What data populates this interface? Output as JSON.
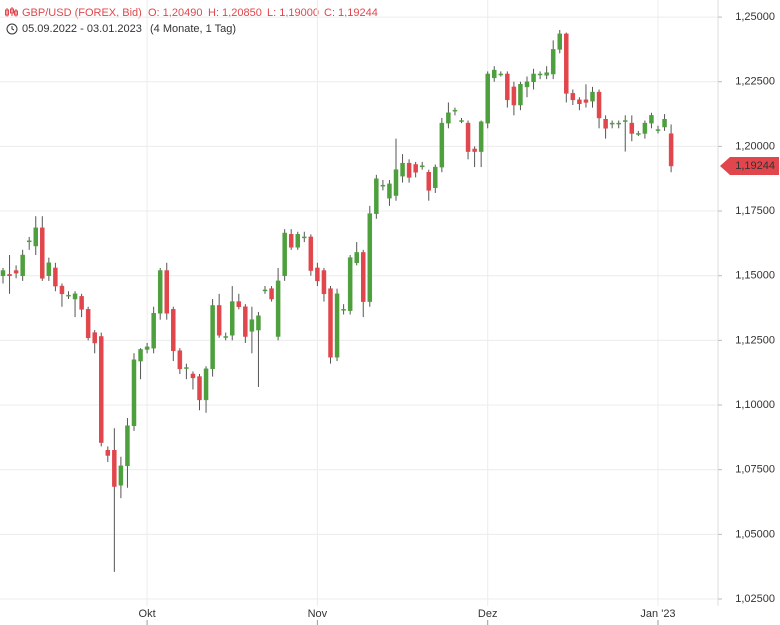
{
  "chart_data": {
    "type": "candlestick",
    "title": "GBP/USD (FOREX, Bid)",
    "summary": [
      {
        "value": 1.2049,
        "label": "O: 1,20490"
      },
      {
        "value": 1.2085,
        "label": "H: 1,20850"
      },
      {
        "value": 1.19,
        "label": "L: 1,19000"
      },
      {
        "value": 1.19244,
        "label": "C: 1,19244"
      }
    ],
    "date_range": "05.09.2022 - 03.01.2023",
    "duration": "(4 Monate, 1 Tag)",
    "last_price": {
      "value": 1.19244,
      "label": "1,19244"
    },
    "up_color": "#4e9f3d",
    "down_color": "#e0464c",
    "grid": true,
    "ylim": [
      1.0223,
      1.2566
    ],
    "yticks": [
      {
        "value": 1.025,
        "label": "1,02500"
      },
      {
        "value": 1.05,
        "label": "1,05000"
      },
      {
        "value": 1.075,
        "label": "1,07500"
      },
      {
        "value": 1.1,
        "label": "1,10000"
      },
      {
        "value": 1.125,
        "label": "1,12500"
      },
      {
        "value": 1.15,
        "label": "1,15000"
      },
      {
        "value": 1.175,
        "label": "1,17500"
      },
      {
        "value": 1.2,
        "label": "1,20000"
      },
      {
        "value": 1.225,
        "label": "1,22500"
      },
      {
        "value": 1.25,
        "label": "1,25000"
      }
    ],
    "categories": [
      null,
      null,
      null,
      null,
      null,
      null,
      null,
      null,
      null,
      null,
      null,
      null,
      null,
      null,
      null,
      null,
      null,
      null,
      null,
      null,
      null,
      null,
      "Okt",
      null,
      null,
      null,
      null,
      null,
      null,
      null,
      null,
      null,
      null,
      null,
      null,
      null,
      null,
      null,
      null,
      null,
      null,
      null,
      null,
      null,
      null,
      null,
      null,
      null,
      "Nov",
      null,
      null,
      null,
      null,
      null,
      null,
      null,
      null,
      null,
      null,
      null,
      null,
      null,
      null,
      null,
      null,
      null,
      null,
      null,
      null,
      null,
      null,
      null,
      null,
      null,
      "Dez",
      null,
      null,
      null,
      null,
      null,
      null,
      null,
      null,
      null,
      null,
      null,
      null,
      null,
      null,
      null,
      null,
      null,
      null,
      null,
      null,
      null,
      null,
      null,
      null,
      null,
      "Jan '23",
      null,
      null
    ],
    "open": [
      1.15,
      1.1505,
      1.152,
      1.15,
      1.1635,
      1.1615,
      1.1685,
      1.15,
      1.153,
      1.146,
      1.1425,
      1.141,
      1.142,
      1.137,
      1.128,
      1.1265,
      1.0825,
      1.0825,
      1.069,
      1.0765,
      1.092,
      1.117,
      1.1215,
      1.122,
      1.1355,
      1.152,
      1.137,
      1.121,
      1.1145,
      1.112,
      1.111,
      1.102,
      1.114,
      1.1385,
      1.1265,
      1.127,
      1.14,
      1.138,
      1.1285,
      1.129,
      1.1445,
      1.145,
      1.1265,
      1.15,
      1.166,
      1.161,
      1.165,
      1.165,
      1.153,
      1.152,
      1.145,
      1.1185,
      1.137,
      1.1365,
      1.155,
      1.159,
      1.14,
      1.174,
      1.185,
      1.18,
      1.181,
      1.1885,
      1.1935,
      1.193,
      1.1925,
      1.19,
      1.184,
      1.192,
      1.209,
      1.214,
      1.21,
      1.209,
      1.199,
      1.198,
      1.209,
      1.2265,
      1.228,
      1.228,
      1.223,
      1.216,
      1.223,
      1.225,
      1.228,
      1.2275,
      1.228,
      1.2375,
      1.2435,
      1.2205,
      1.218,
      1.218,
      1.2175,
      1.221,
      1.2105,
      1.209,
      1.209,
      1.21,
      1.209,
      1.205,
      1.205,
      1.209,
      1.2065,
      1.2075,
      1.2049
    ],
    "high": [
      1.153,
      1.158,
      1.154,
      1.16,
      1.165,
      1.173,
      1.173,
      1.157,
      1.155,
      1.147,
      1.144,
      1.144,
      1.143,
      1.138,
      1.129,
      1.128,
      1.084,
      1.091,
      1.08,
      1.095,
      1.12,
      1.122,
      1.124,
      1.138,
      1.153,
      1.155,
      1.138,
      1.122,
      1.116,
      1.113,
      1.112,
      1.115,
      1.141,
      1.143,
      1.128,
      1.146,
      1.143,
      1.139,
      1.138,
      1.136,
      1.146,
      1.146,
      1.153,
      1.168,
      1.168,
      1.167,
      1.167,
      1.166,
      1.155,
      1.153,
      1.146,
      1.145,
      1.139,
      1.158,
      1.163,
      1.16,
      1.177,
      1.189,
      1.187,
      1.187,
      1.203,
      1.197,
      1.195,
      1.194,
      1.194,
      1.191,
      1.193,
      1.211,
      1.217,
      1.215,
      1.211,
      1.21,
      1.2,
      1.21,
      1.229,
      1.231,
      1.229,
      1.229,
      1.225,
      1.225,
      1.227,
      1.23,
      1.229,
      1.231,
      1.241,
      1.245,
      1.244,
      1.222,
      1.219,
      1.224,
      1.223,
      1.222,
      1.212,
      1.21,
      1.21,
      1.212,
      1.212,
      1.206,
      1.21,
      1.213,
      1.208,
      1.2125,
      1.2085
    ],
    "low": [
      1.147,
      1.143,
      1.149,
      1.148,
      1.16,
      1.158,
      1.148,
      1.148,
      1.144,
      1.138,
      1.141,
      1.134,
      1.134,
      1.125,
      1.12,
      1.084,
      1.078,
      1.0355,
      1.064,
      1.068,
      1.09,
      1.11,
      1.12,
      1.12,
      1.133,
      1.133,
      1.117,
      1.112,
      1.11,
      1.106,
      1.098,
      1.097,
      1.111,
      1.126,
      1.125,
      1.125,
      1.137,
      1.124,
      1.12,
      1.107,
      1.143,
      1.14,
      1.125,
      1.148,
      1.16,
      1.16,
      1.163,
      1.15,
      1.146,
      1.14,
      1.116,
      1.117,
      1.135,
      1.135,
      1.154,
      1.134,
      1.138,
      1.172,
      1.183,
      1.177,
      1.179,
      1.186,
      1.186,
      1.188,
      1.191,
      1.179,
      1.182,
      1.19,
      1.207,
      1.212,
      1.209,
      1.195,
      1.192,
      1.192,
      1.207,
      1.225,
      1.227,
      1.215,
      1.212,
      1.214,
      1.219,
      1.222,
      1.226,
      1.226,
      1.226,
      1.236,
      1.217,
      1.216,
      1.214,
      1.215,
      1.215,
      1.207,
      1.203,
      1.207,
      1.207,
      1.198,
      1.202,
      1.204,
      1.203,
      1.207,
      1.205,
      1.206,
      1.19
    ],
    "close": [
      1.152,
      1.15,
      1.151,
      1.158,
      1.1635,
      1.1685,
      1.149,
      1.155,
      1.146,
      1.143,
      1.1425,
      1.143,
      1.137,
      1.126,
      1.124,
      1.0855,
      1.0805,
      1.0685,
      1.0765,
      1.092,
      1.1175,
      1.1215,
      1.1225,
      1.1355,
      1.152,
      1.1355,
      1.121,
      1.114,
      1.1145,
      1.1105,
      1.102,
      1.114,
      1.1385,
      1.127,
      1.1265,
      1.14,
      1.138,
      1.1265,
      1.133,
      1.1345,
      1.1445,
      1.141,
      1.148,
      1.1665,
      1.161,
      1.166,
      1.165,
      1.152,
      1.148,
      1.143,
      1.1185,
      1.143,
      1.137,
      1.157,
      1.159,
      1.14,
      1.174,
      1.1875,
      1.185,
      1.1855,
      1.191,
      1.1935,
      1.188,
      1.19,
      1.1925,
      1.183,
      1.192,
      1.209,
      1.213,
      1.214,
      1.21,
      1.198,
      1.198,
      1.2095,
      1.228,
      1.2295,
      1.228,
      1.218,
      1.216,
      1.224,
      1.225,
      1.228,
      1.228,
      1.2285,
      1.2375,
      1.2435,
      1.2205,
      1.218,
      1.2165,
      1.217,
      1.221,
      1.211,
      1.207,
      1.209,
      1.209,
      1.21,
      1.205,
      1.205,
      1.209,
      1.212,
      1.2065,
      1.2105,
      1.19244
    ]
  }
}
